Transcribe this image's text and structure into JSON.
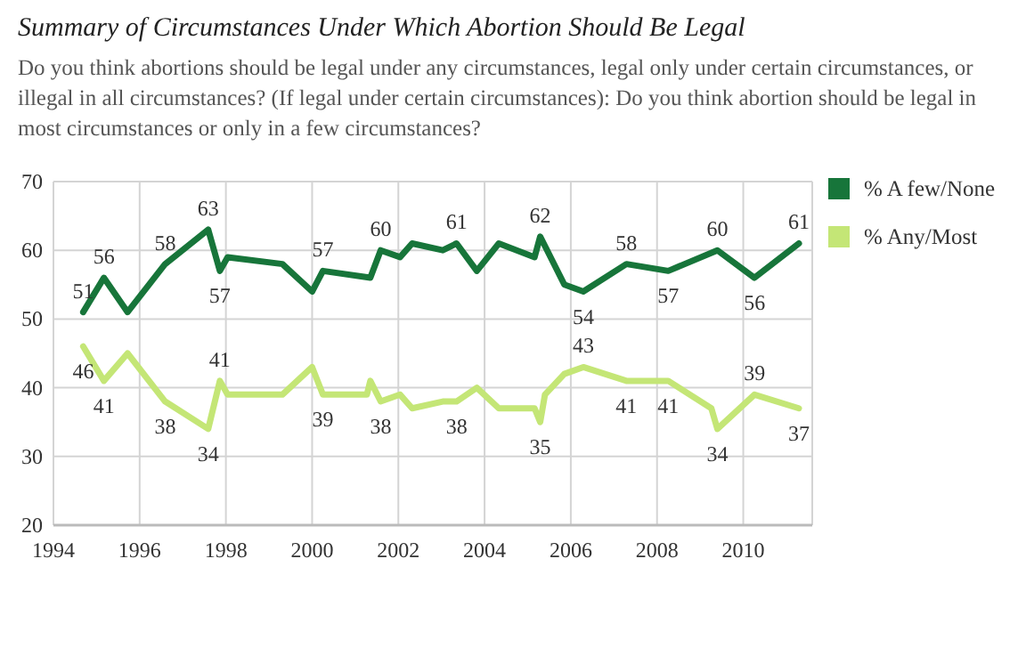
{
  "chart_data": {
    "type": "line",
    "title": "Summary of Circumstances Under Which Abortion Should Be Legal",
    "subtitle": "Do you think abortions should be legal under any circumstances, legal only under certain circumstances, or illegal in all circumstances?  (If legal under certain circumstances): Do you think abortion should be legal in most circumstances or only in a few circumstances?",
    "xlim": [
      1994,
      2011.6
    ],
    "xticks": [
      1994,
      1996,
      1998,
      2000,
      2002,
      2004,
      2006,
      2008,
      2010
    ],
    "ylim": [
      20,
      70
    ],
    "yticks": [
      20,
      30,
      40,
      50,
      60,
      70
    ],
    "grid": true,
    "legend": "top right",
    "marker": "none",
    "line_style": "solid",
    "series": [
      {
        "name": "% A few/None",
        "color": "#17753a",
        "x": [
          1994.69,
          1995.17,
          1995.72,
          1996.59,
          1997.59,
          1997.86,
          1998.04,
          1999.31,
          2000.0,
          2000.25,
          2001.35,
          2001.59,
          2002.04,
          2002.32,
          2003.03,
          2003.35,
          2003.82,
          2004.33,
          2005.16,
          2005.29,
          2005.85,
          2006.29,
          2007.29,
          2008.26,
          2009.4,
          2010.26,
          2011.29
        ],
        "values": [
          51,
          56,
          51,
          58,
          63,
          57,
          59,
          58,
          54,
          57,
          56,
          60,
          59,
          61,
          60,
          61,
          57,
          61,
          59,
          62,
          55,
          54,
          58,
          57,
          60,
          56,
          61
        ],
        "value_labels": [
          "51",
          "56",
          null,
          "58",
          "63",
          "57",
          null,
          null,
          null,
          "57",
          null,
          "60",
          null,
          null,
          null,
          "61",
          null,
          null,
          null,
          "62",
          null,
          "54",
          "58",
          "57",
          "60",
          "56",
          "61"
        ]
      },
      {
        "name": "% Any/Most",
        "color": "#c4e676",
        "x": [
          1994.69,
          1995.17,
          1995.72,
          1996.59,
          1997.59,
          1997.86,
          1998.04,
          1999.31,
          2000.0,
          2000.25,
          2001.27,
          2001.35,
          2001.59,
          2002.04,
          2002.32,
          2003.03,
          2003.35,
          2003.82,
          2004.33,
          2005.16,
          2005.29,
          2005.4,
          2005.85,
          2006.29,
          2007.29,
          2008.26,
          2009.26,
          2009.4,
          2010.26,
          2011.29
        ],
        "values": [
          46,
          41,
          45,
          38,
          34,
          41,
          39,
          39,
          43,
          39,
          39,
          41,
          38,
          39,
          37,
          38,
          38,
          40,
          37,
          37,
          35,
          39,
          42,
          43,
          41,
          41,
          37,
          34,
          39,
          37
        ],
        "value_labels": [
          "46",
          "41",
          null,
          "38",
          "34",
          "41",
          null,
          null,
          null,
          "39",
          null,
          null,
          "38",
          null,
          null,
          null,
          "38",
          null,
          null,
          null,
          "35",
          null,
          null,
          "43",
          "41",
          "41",
          null,
          "34",
          "39",
          "37"
        ]
      }
    ]
  }
}
